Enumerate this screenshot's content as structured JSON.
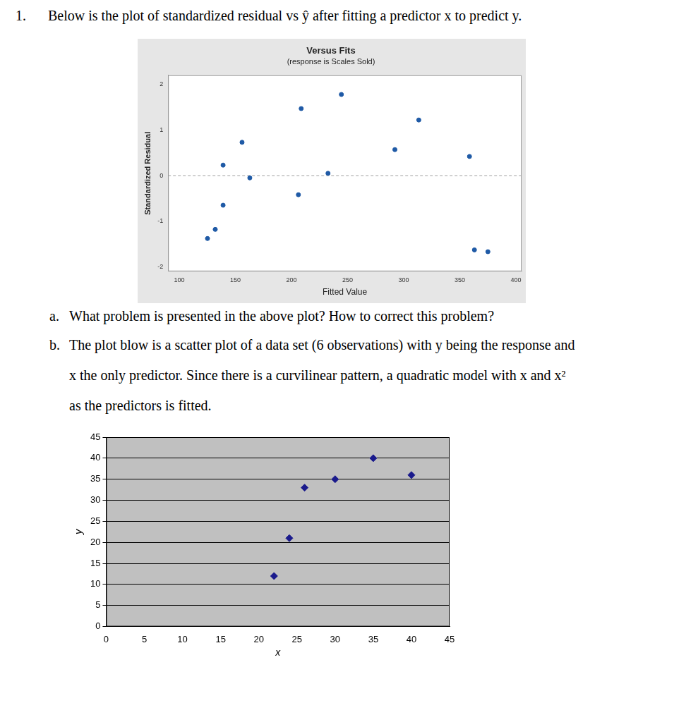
{
  "document": {
    "question_number": "1.",
    "question_text": "Below is the plot of standardized residual vs ŷ after fitting a predictor x to predict y.",
    "parts": [
      {
        "label": "a.",
        "lines": [
          "What problem is presented in the above plot? How to correct this problem?"
        ]
      },
      {
        "label": "b.",
        "lines": [
          "The plot blow is a scatter plot of a data set (6 observations) with y being the response and",
          "x the only predictor. Since there is a curvilinear pattern, a quadratic model with x and x²",
          "as the predictors is fitted."
        ]
      }
    ]
  },
  "chart_data": [
    {
      "type": "scatter",
      "title": "Versus Fits",
      "subtitle": "(response is Scales Sold)",
      "x_label": "Fitted Value",
      "y_label": "Standardized Residual",
      "x": [
        125.1,
        132,
        139,
        139,
        155.9,
        162.8,
        208.6,
        206.1,
        232.5,
        244.4,
        292.1,
        313.4,
        358.6,
        363,
        375
      ],
      "values": [
        -1.38,
        -1.18,
        0.23,
        -0.65,
        0.73,
        -0.05,
        1.47,
        -0.42,
        0.05,
        1.78,
        0.57,
        1.22,
        0.42,
        -1.63,
        -1.67
      ],
      "color": "#1f5aa6",
      "marker": "circle",
      "xlim": [
        90,
        405
      ],
      "xticks": [
        100,
        150,
        200,
        250,
        300,
        350,
        400
      ],
      "ylim": [
        -2.1,
        2.2
      ],
      "yticks": [
        -2,
        -1,
        0,
        1,
        2
      ],
      "reference_line": 0,
      "grid": false
    },
    {
      "type": "scatter",
      "x_label": "x",
      "y_label": "y",
      "x": [
        22,
        24,
        26,
        30,
        35,
        40
      ],
      "values": [
        12,
        21,
        33,
        35,
        40,
        36
      ],
      "color": "#1a1a8c",
      "marker": "diamond",
      "xlim": [
        0,
        45
      ],
      "xticks": [
        0,
        5,
        10,
        15,
        20,
        25,
        30,
        35,
        40,
        45
      ],
      "ylim": [
        0,
        45
      ],
      "yticks": [
        0,
        5,
        10,
        15,
        20,
        25,
        30,
        35,
        40,
        45
      ],
      "grid": "y"
    }
  ]
}
